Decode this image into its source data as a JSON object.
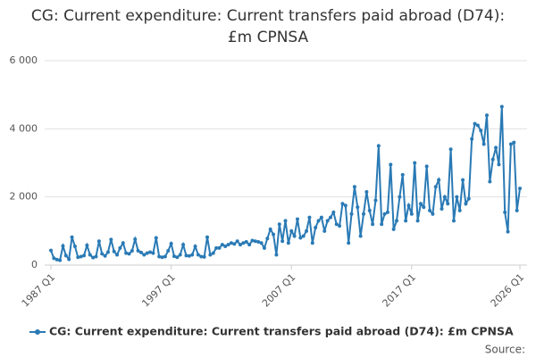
{
  "chart_data": {
    "type": "line",
    "title": "CG: Current expenditure: Current transfers paid abroad (D74): £m CPNSA",
    "source": "Source:",
    "categories": [
      "1987 Q1",
      null,
      null,
      null,
      null,
      null,
      null,
      null,
      null,
      null,
      null,
      null,
      null,
      null,
      null,
      null,
      null,
      null,
      null,
      null,
      null,
      null,
      null,
      null,
      null,
      null,
      null,
      null,
      null,
      null,
      null,
      null,
      null,
      null,
      null,
      null,
      null,
      null,
      null,
      null,
      "1997 Q1",
      null,
      null,
      null,
      null,
      null,
      null,
      null,
      null,
      null,
      null,
      null,
      null,
      null,
      null,
      null,
      null,
      null,
      null,
      null,
      null,
      null,
      null,
      null,
      null,
      null,
      null,
      null,
      null,
      null,
      null,
      null,
      null,
      null,
      null,
      null,
      null,
      null,
      null,
      null,
      "2007 Q1",
      null,
      null,
      null,
      null,
      null,
      null,
      null,
      null,
      null,
      null,
      null,
      null,
      null,
      null,
      null,
      null,
      null,
      null,
      null,
      null,
      null,
      null,
      null,
      null,
      null,
      null,
      null,
      null,
      null,
      null,
      null,
      null,
      null,
      null,
      null,
      null,
      null,
      null,
      null,
      "2017 Q1",
      null,
      null,
      null,
      null,
      null,
      null,
      null,
      null,
      null,
      null,
      null,
      null,
      null,
      null,
      null,
      null,
      null,
      null,
      null,
      null,
      null,
      null,
      null,
      null,
      null,
      null,
      null,
      null,
      null,
      null,
      null,
      null,
      null,
      null,
      null,
      "2026 Q1"
    ],
    "series": [
      {
        "name": "CG: Current expenditure: Current transfers paid abroad (D74): £m CPNSA",
        "color": "#2a7ab5",
        "values": [
          430,
          200,
          160,
          140,
          560,
          280,
          170,
          820,
          550,
          230,
          250,
          280,
          580,
          300,
          220,
          250,
          700,
          330,
          270,
          380,
          750,
          400,
          300,
          500,
          650,
          350,
          330,
          420,
          760,
          420,
          370,
          300,
          350,
          380,
          350,
          800,
          250,
          230,
          250,
          420,
          630,
          260,
          230,
          300,
          600,
          280,
          270,
          300,
          550,
          300,
          250,
          240,
          820,
          300,
          350,
          500,
          500,
          600,
          550,
          600,
          650,
          620,
          700,
          600,
          650,
          680,
          600,
          720,
          700,
          680,
          650,
          500,
          780,
          1050,
          900,
          300,
          1200,
          700,
          1300,
          650,
          1000,
          850,
          1350,
          800,
          850,
          1000,
          1400,
          650,
          1100,
          1300,
          1400,
          1000,
          1300,
          1400,
          1550,
          1200,
          1150,
          1800,
          1750,
          650,
          1500,
          2300,
          1700,
          850,
          1500,
          2150,
          1600,
          1200,
          1900,
          3500,
          1200,
          1500,
          1550,
          2950,
          1050,
          1300,
          2000,
          2650,
          1300,
          1750,
          1500,
          3000,
          1300,
          1800,
          1700,
          2900,
          1600,
          1500,
          2300,
          2500,
          1650,
          2000,
          1800,
          3400,
          1300,
          2000,
          1600,
          2500,
          1800,
          1950,
          3700,
          4150,
          4100,
          3950,
          3550,
          4400,
          2450,
          3100,
          3450,
          2950,
          4650,
          1550,
          980,
          3550,
          3600,
          1600,
          2250
        ]
      }
    ],
    "ylim": [
      0,
      6000
    ],
    "yticks": [
      0,
      {
        "value": 2000,
        "label": "2 000"
      },
      {
        "value": 4000,
        "label": "4 000"
      },
      {
        "value": 6000,
        "label": "6 000"
      }
    ],
    "grid": true
  }
}
